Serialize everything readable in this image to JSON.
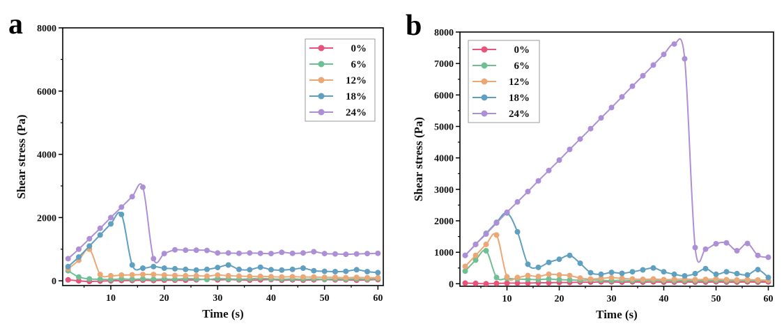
{
  "colors": {
    "0%": "#e8537a",
    "6%": "#6fbf95",
    "12%": "#eba776",
    "18%": "#5f9fc0",
    "24%": "#ad8fd6"
  },
  "chart_data": [
    {
      "type": "line",
      "panel": "a",
      "xlabel": "Time (s)",
      "ylabel": "Shear stress (Pa)",
      "xlim": [
        1,
        61
      ],
      "ylim": [
        -150,
        8000
      ],
      "xticks": [
        10,
        20,
        30,
        40,
        50,
        60
      ],
      "yticks": [
        0,
        2000,
        4000,
        6000,
        8000
      ],
      "legend": "top-right",
      "series": [
        {
          "name": "0%",
          "x": [
            2,
            4,
            6,
            8,
            10,
            12,
            14,
            16,
            18,
            20,
            22,
            24,
            26,
            28,
            30,
            32,
            34,
            36,
            38,
            40,
            42,
            44,
            46,
            48,
            50,
            52,
            54,
            56,
            58,
            60
          ],
          "y": [
            30,
            0,
            -20,
            -10,
            0,
            10,
            10,
            20,
            10,
            20,
            20,
            20,
            30,
            50,
            30,
            40,
            30,
            20,
            30,
            40,
            20,
            30,
            20,
            30,
            40,
            30,
            30,
            20,
            30,
            40
          ]
        },
        {
          "name": "6%",
          "x": [
            2,
            4,
            6,
            8,
            10,
            12,
            14,
            16,
            18,
            20,
            22,
            24,
            26,
            28,
            30,
            32,
            34,
            36,
            38,
            40,
            42,
            44,
            46,
            48,
            50,
            52,
            54,
            56,
            58,
            60
          ],
          "y": [
            320,
            120,
            60,
            50,
            40,
            60,
            50,
            60,
            50,
            60,
            50,
            70,
            60,
            40,
            70,
            60,
            50,
            60,
            80,
            60,
            50,
            60,
            50,
            60,
            50,
            60,
            50,
            60,
            50,
            70
          ]
        },
        {
          "name": "12%",
          "x": [
            2,
            4,
            6,
            8,
            10,
            12,
            14,
            16,
            18,
            20,
            22,
            24,
            26,
            28,
            30,
            32,
            34,
            36,
            38,
            40,
            42,
            44,
            46,
            48,
            50,
            52,
            54,
            56,
            58,
            60
          ],
          "y": [
            380,
            650,
            1000,
            200,
            160,
            180,
            190,
            200,
            200,
            180,
            170,
            160,
            160,
            150,
            180,
            160,
            150,
            140,
            140,
            130,
            120,
            130,
            120,
            120,
            110,
            110,
            100,
            110,
            100,
            100
          ]
        },
        {
          "name": "18%",
          "x": [
            2,
            4,
            6,
            8,
            10,
            12,
            14,
            16,
            18,
            20,
            22,
            24,
            26,
            28,
            30,
            32,
            34,
            36,
            38,
            40,
            42,
            44,
            46,
            48,
            50,
            52,
            54,
            56,
            58,
            60
          ],
          "y": [
            450,
            750,
            1100,
            1450,
            1800,
            2100,
            500,
            400,
            450,
            400,
            380,
            360,
            340,
            360,
            420,
            500,
            360,
            350,
            430,
            350,
            340,
            360,
            400,
            320,
            300,
            290,
            300,
            350,
            290,
            260
          ]
        },
        {
          "name": "24%",
          "x": [
            2,
            4,
            6,
            8,
            10,
            12,
            14,
            16,
            18,
            20,
            22,
            24,
            26,
            28,
            30,
            32,
            34,
            36,
            38,
            40,
            42,
            44,
            46,
            48,
            50,
            52,
            54,
            56,
            58,
            60
          ],
          "y": [
            700,
            1000,
            1330,
            1660,
            2000,
            2330,
            2660,
            2960,
            700,
            860,
            980,
            970,
            970,
            960,
            880,
            880,
            870,
            880,
            870,
            860,
            900,
            870,
            880,
            920,
            860,
            850,
            840,
            850,
            860,
            870
          ]
        }
      ]
    },
    {
      "type": "line",
      "panel": "b",
      "xlabel": "Time (s)",
      "ylabel": "Shear stress (Pa)",
      "xlim": [
        1,
        61
      ],
      "ylim": [
        -80,
        8000
      ],
      "xticks": [
        10,
        20,
        30,
        40,
        50,
        60
      ],
      "yticks": [
        0,
        1000,
        2000,
        3000,
        4000,
        5000,
        6000,
        7000,
        8000
      ],
      "legend": "top-right",
      "series": [
        {
          "name": "0%",
          "x": [
            2,
            4,
            6,
            8,
            10,
            12,
            14,
            16,
            18,
            20,
            22,
            24,
            26,
            28,
            30,
            32,
            34,
            36,
            38,
            40,
            42,
            44,
            46,
            48,
            50,
            52,
            54,
            56,
            58,
            60
          ],
          "y": [
            20,
            10,
            0,
            10,
            20,
            20,
            20,
            30,
            30,
            40,
            40,
            50,
            50,
            60,
            60,
            50,
            60,
            50,
            60,
            50,
            50,
            60,
            50,
            50,
            60,
            50,
            50,
            60,
            50,
            60
          ]
        },
        {
          "name": "6%",
          "x": [
            2,
            4,
            6,
            8,
            10,
            12,
            14,
            16,
            18,
            20,
            22,
            24,
            26,
            28,
            30,
            32,
            34,
            36,
            38,
            40,
            42,
            44,
            46,
            48,
            50,
            52,
            54,
            56,
            58,
            60
          ],
          "y": [
            400,
            750,
            1050,
            200,
            170,
            150,
            140,
            130,
            150,
            130,
            120,
            110,
            120,
            110,
            100,
            110,
            100,
            100,
            110,
            100,
            90,
            100,
            90,
            100,
            100,
            90,
            90,
            100,
            90,
            100
          ]
        },
        {
          "name": "12%",
          "x": [
            2,
            4,
            6,
            8,
            10,
            12,
            14,
            16,
            18,
            20,
            22,
            24,
            26,
            28,
            30,
            32,
            34,
            36,
            38,
            40,
            42,
            44,
            46,
            48,
            50,
            52,
            54,
            56,
            58,
            60
          ],
          "y": [
            550,
            900,
            1250,
            1550,
            220,
            200,
            260,
            230,
            300,
            280,
            260,
            180,
            150,
            170,
            190,
            170,
            150,
            140,
            150,
            130,
            140,
            150,
            130,
            140,
            150,
            130,
            120,
            130,
            120,
            110
          ]
        },
        {
          "name": "18%",
          "x": [
            2,
            4,
            6,
            8,
            10,
            12,
            14,
            16,
            18,
            20,
            22,
            24,
            26,
            28,
            30,
            32,
            34,
            36,
            38,
            40,
            42,
            44,
            46,
            48,
            50,
            52,
            54,
            56,
            58,
            60
          ],
          "y": [
            900,
            1250,
            1600,
            1950,
            2250,
            1650,
            620,
            520,
            680,
            780,
            900,
            650,
            350,
            300,
            360,
            330,
            380,
            440,
            500,
            380,
            300,
            250,
            320,
            480,
            300,
            380,
            320,
            280,
            450,
            200
          ]
        },
        {
          "name": "24%",
          "x": [
            2,
            4,
            6,
            8,
            10,
            12,
            14,
            16,
            18,
            20,
            22,
            24,
            26,
            28,
            30,
            32,
            34,
            36,
            38,
            40,
            42,
            44,
            46,
            48,
            50,
            52,
            54,
            56,
            58,
            60
          ],
          "y": [
            900,
            1250,
            1580,
            1930,
            2270,
            2600,
            2930,
            3270,
            3600,
            3930,
            4270,
            4600,
            4930,
            5270,
            5600,
            5940,
            6280,
            6610,
            6950,
            7290,
            7620,
            7150,
            1150,
            1100,
            1270,
            1300,
            1050,
            1280,
            900,
            840
          ]
        }
      ]
    }
  ]
}
